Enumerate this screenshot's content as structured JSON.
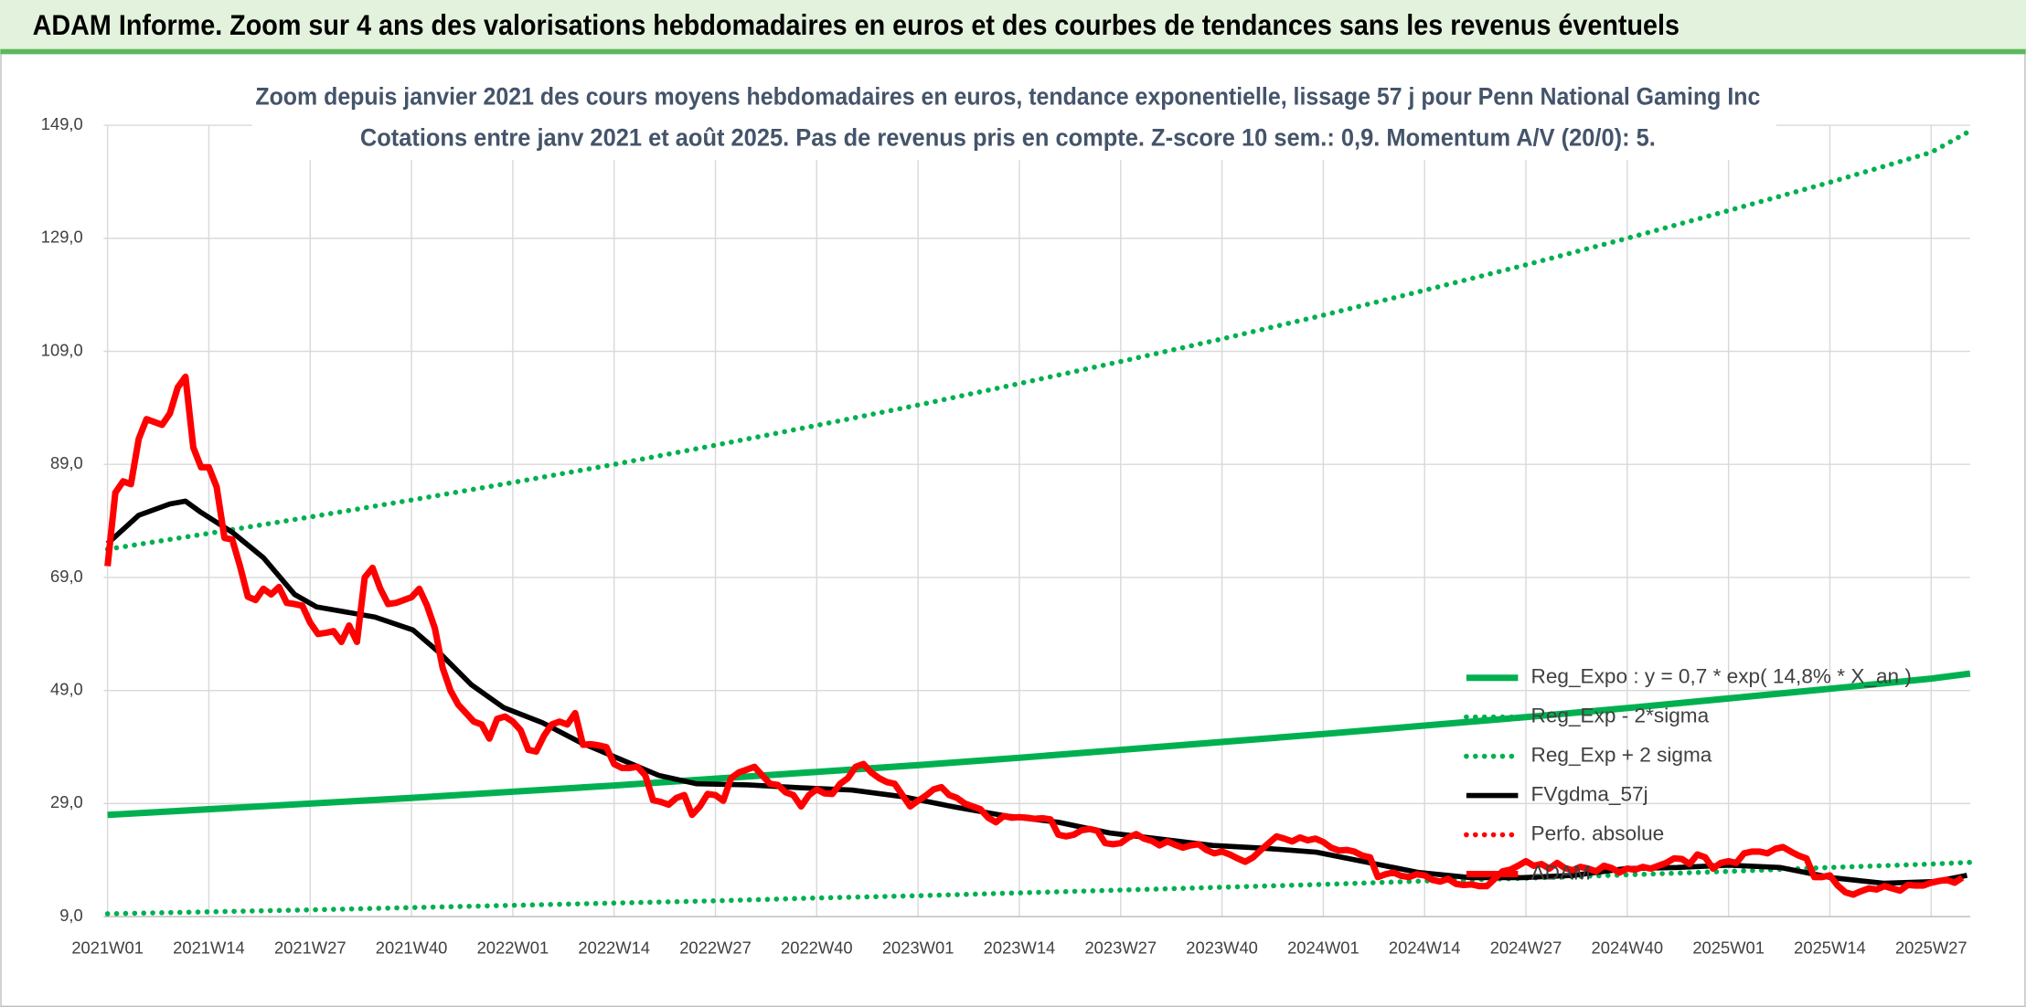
{
  "chart_data": {
    "type": "line",
    "title": "ADAM Informe. Zoom sur 4 ans des valorisations hebdomadaires en euros et des courbes de tendances sans les revenus éventuels",
    "subtitle": [
      "Zoom depuis janvier 2021 des cours moyens hebdomadaires en euros, tendance exponentielle, lissage 57 j pour Penn National Gaming Inc",
      "Cotations entre janv 2021 et août 2025. Pas de revenus pris en compte. Z-score 10 sem.: 0,9. Momentum A/V (20/0): 5."
    ],
    "xlim": [
      -0.5,
      239
    ],
    "xticks": [
      {
        "value": 0,
        "label": "2021W01"
      },
      {
        "value": 13,
        "label": "2021W14"
      },
      {
        "value": 26,
        "label": "2021W27"
      },
      {
        "value": 39,
        "label": "2021W40"
      },
      {
        "value": 52,
        "label": "2022W01"
      },
      {
        "value": 65,
        "label": "2022W14"
      },
      {
        "value": 78,
        "label": "2022W27"
      },
      {
        "value": 91,
        "label": "2022W40"
      },
      {
        "value": 104,
        "label": "2023W01"
      },
      {
        "value": 117,
        "label": "2023W14"
      },
      {
        "value": 130,
        "label": "2023W27"
      },
      {
        "value": 143,
        "label": "2023W40"
      },
      {
        "value": 156,
        "label": "2024W01"
      },
      {
        "value": 169,
        "label": "2024W14"
      },
      {
        "value": 182,
        "label": "2024W27"
      },
      {
        "value": 195,
        "label": "2024W40"
      },
      {
        "value": 208,
        "label": "2025W01"
      },
      {
        "value": 221,
        "label": "2025W14"
      },
      {
        "value": 234,
        "label": "2025W27"
      }
    ],
    "ylim": [
      9,
      149
    ],
    "yticks": [
      {
        "value": 9,
        "label": "9,0"
      },
      {
        "value": 29,
        "label": "29,0"
      },
      {
        "value": 49,
        "label": "49,0"
      },
      {
        "value": 69,
        "label": "69,0"
      },
      {
        "value": 89,
        "label": "89,0"
      },
      {
        "value": 109,
        "label": "109,0"
      },
      {
        "value": 129,
        "label": "129,0"
      },
      {
        "value": 149,
        "label": "149,0"
      }
    ],
    "grid": true,
    "legend": "lower right",
    "series": [
      {
        "name": "Reg_Expo : y = 0,7 * exp( 14,8% *  X_an )",
        "color": "#00b050",
        "dash": "solid",
        "x": [
          0,
          13,
          26,
          39,
          52,
          65,
          78,
          91,
          104,
          117,
          130,
          143,
          156,
          169,
          182,
          195,
          208,
          221,
          234,
          239
        ],
        "values": [
          27,
          28,
          29,
          30,
          31.1,
          32.2,
          33.4,
          34.6,
          35.8,
          37.1,
          38.5,
          39.9,
          41.3,
          42.8,
          44.3,
          45.9,
          47.6,
          49.3,
          51.1,
          52
        ]
      },
      {
        "name": "Reg_Exp - 2*sigma",
        "color": "#00b050",
        "dash": "dot",
        "x": [
          0,
          13,
          26,
          39,
          52,
          65,
          78,
          91,
          104,
          117,
          130,
          143,
          156,
          169,
          182,
          195,
          208,
          221,
          234,
          239
        ],
        "values": [
          9.5,
          9.85,
          10.2,
          10.6,
          11,
          11.4,
          11.8,
          12.3,
          12.7,
          13.2,
          13.7,
          14.2,
          14.7,
          15.3,
          15.8,
          16.4,
          17,
          17.7,
          18.3,
          18.6
        ]
      },
      {
        "name": "Reg_Exp + 2 sigma",
        "color": "#00b050",
        "dash": "dot",
        "x": [
          0,
          13,
          26,
          39,
          52,
          65,
          78,
          91,
          104,
          117,
          130,
          143,
          156,
          169,
          182,
          195,
          208,
          221,
          234,
          239
        ],
        "values": [
          74,
          76.8,
          79.7,
          82.7,
          85.8,
          89,
          92.4,
          95.9,
          99.5,
          103.3,
          107.2,
          111.2,
          115.4,
          119.8,
          124.3,
          129,
          133.9,
          138.9,
          144.2,
          148
        ]
      },
      {
        "name": "FVgdma_57j",
        "color": "#000000",
        "dash": "solid",
        "x": [
          0,
          4,
          8,
          10,
          12,
          16,
          20,
          24,
          26.8,
          34.3,
          39.2,
          42.5,
          46.7,
          50.8,
          55.8,
          60.7,
          65.7,
          70.7,
          75.6,
          82.2,
          88.9,
          95.5,
          102.1,
          108.7,
          115.3,
          122,
          128.6,
          135.2,
          141.8,
          148.4,
          155.1,
          161.7,
          168.3,
          174.9,
          181.5,
          188.1,
          194.8,
          201.4,
          208,
          214.6,
          221.2,
          227.9,
          234.5,
          238.6
        ],
        "values": [
          75,
          80,
          82,
          82.5,
          80.5,
          77,
          72.5,
          66,
          63.8,
          62,
          59.7,
          55.8,
          50,
          46,
          43.3,
          39.8,
          36.9,
          34,
          32.5,
          32.3,
          31.8,
          31.4,
          30.2,
          28.4,
          26.8,
          25.7,
          23.8,
          22.7,
          21.6,
          21.1,
          20.4,
          18.6,
          16.8,
          15.9,
          15.9,
          16.3,
          17.5,
          17.7,
          18.1,
          17.7,
          15.9,
          14.9,
          15.2,
          16.3
        ]
      },
      {
        "name": "Perfo. absolue",
        "color": "#ff0000",
        "dash": "dot",
        "x": [],
        "values": []
      },
      {
        "name": "ADAM",
        "color": "#ff0000",
        "dash": "solid",
        "x": [
          0,
          1,
          2,
          3,
          4,
          5,
          6,
          7,
          8,
          9,
          10,
          11,
          12,
          13,
          14,
          15,
          16,
          17,
          18,
          19,
          20,
          21,
          22,
          23,
          24,
          25,
          26,
          27,
          28,
          29,
          30,
          31,
          32,
          33,
          34,
          35,
          36,
          37,
          38,
          39,
          40,
          41,
          42,
          43,
          44,
          45,
          46,
          47,
          48,
          49,
          50,
          51,
          52,
          53,
          54,
          55,
          56,
          57,
          58,
          59,
          60,
          61,
          62,
          63,
          64,
          65,
          66,
          67,
          68,
          69,
          70,
          71,
          72,
          73,
          74,
          75,
          76,
          77,
          78,
          79,
          80,
          81,
          82,
          83,
          84,
          85,
          86,
          87,
          88,
          89,
          90,
          91,
          92,
          93,
          94,
          95,
          96,
          97,
          98,
          99,
          100,
          101,
          102,
          103,
          104,
          105,
          106,
          107,
          108,
          109,
          110,
          111,
          112,
          113,
          114,
          115,
          116,
          117,
          118,
          119,
          120,
          121,
          122,
          123,
          124,
          125,
          126,
          127,
          128,
          129,
          130,
          131,
          132,
          133,
          134,
          135,
          136,
          137,
          138,
          139,
          140,
          141,
          142,
          143,
          144,
          145,
          146,
          147,
          148,
          149,
          150,
          151,
          152,
          153,
          154,
          155,
          156,
          157,
          158,
          159,
          160,
          161,
          162,
          163,
          164,
          165,
          166,
          167,
          168,
          169,
          170,
          171,
          172,
          173,
          174,
          175,
          176,
          177,
          178,
          179,
          180,
          181,
          182,
          183,
          184,
          185,
          186,
          187,
          188,
          189,
          190,
          191,
          192,
          193,
          194,
          195,
          196,
          197,
          198,
          199,
          200,
          201,
          202,
          203,
          204,
          205,
          206,
          207,
          208,
          209,
          210,
          211,
          212,
          213,
          214,
          215,
          216,
          217,
          218,
          219,
          220,
          221,
          222,
          223,
          224,
          225,
          226,
          227,
          228,
          229,
          230,
          231,
          232,
          233,
          234,
          235,
          236,
          237,
          238
        ],
        "values": [
          71,
          84,
          86,
          85.5,
          93.5,
          97,
          96.5,
          96,
          98,
          102.6,
          104.5,
          92,
          88.5,
          88.5,
          85,
          76,
          75.7,
          71,
          65.6,
          65,
          67,
          66,
          67.3,
          64.5,
          64.3,
          64,
          61,
          59,
          59.2,
          59.5,
          57.6,
          60.5,
          57.6,
          69,
          70.7,
          67,
          64.3,
          64.5,
          65,
          65.5,
          67,
          64,
          60,
          53,
          49,
          46.5,
          45,
          43.5,
          43,
          40.5,
          44,
          44.4,
          43.5,
          42,
          38.5,
          38.2,
          41,
          43,
          43.5,
          43,
          45,
          39.4,
          39.5,
          39.3,
          39,
          36,
          35.3,
          35.3,
          35.5,
          34,
          29.6,
          29.3,
          28.8,
          30,
          30.5,
          27,
          28.5,
          30.7,
          30.5,
          29.5,
          33.5,
          34.5,
          35,
          35.5,
          34,
          32.5,
          32.3,
          31,
          30.5,
          28.5,
          30.5,
          31.5,
          30.8,
          30.7,
          32.5,
          33.5,
          35.5,
          36,
          34.5,
          33.5,
          32.8,
          32.5,
          30.5,
          28.5,
          29.5,
          30.4,
          31.5,
          31.9,
          30.5,
          30,
          29,
          28.5,
          28,
          26.5,
          25.7,
          26.8,
          26.5,
          26.6,
          26.5,
          26.3,
          26.4,
          26.2,
          23.5,
          23.2,
          23.5,
          24.3,
          24.5,
          24.2,
          22,
          21.8,
          22,
          23,
          23.6,
          22.8,
          22.4,
          21.6,
          22.3,
          21.7,
          21.2,
          21.6,
          21.8,
          20.8,
          20.2,
          20.5,
          20,
          19.3,
          18.7,
          19.5,
          20.8,
          22,
          23.2,
          22.8,
          22.3,
          23,
          22.5,
          22.8,
          22.2,
          21.2,
          20.7,
          20.8,
          20.5,
          19.8,
          19.5,
          16,
          16.5,
          16.8,
          16.2,
          16,
          16.5,
          16.3,
          15.5,
          15.2,
          15.7,
          14.8,
          14.6,
          14.7,
          14.4,
          14.4,
          15.7,
          17,
          17.3,
          18,
          18.8,
          18,
          18.3,
          17.5,
          18.5,
          17.6,
          17.2,
          17.8,
          17.5,
          17,
          18,
          17.6,
          16.8,
          17.5,
          17.3,
          17.8,
          17.5,
          18,
          18.5,
          19.3,
          19.2,
          18.3,
          20,
          19.5,
          17.5,
          18.5,
          18.8,
          18.5,
          20.2,
          20.5,
          20.5,
          20.2,
          21,
          21.3,
          20.5,
          19.8,
          19.3,
          16,
          16,
          16.3,
          14.5,
          13.3,
          12.9,
          13.5,
          14,
          13.8,
          14.4,
          14,
          13.6,
          14.6,
          14.5,
          14.5,
          15,
          15.3,
          15.5,
          15,
          15.9
        ]
      }
    ]
  }
}
